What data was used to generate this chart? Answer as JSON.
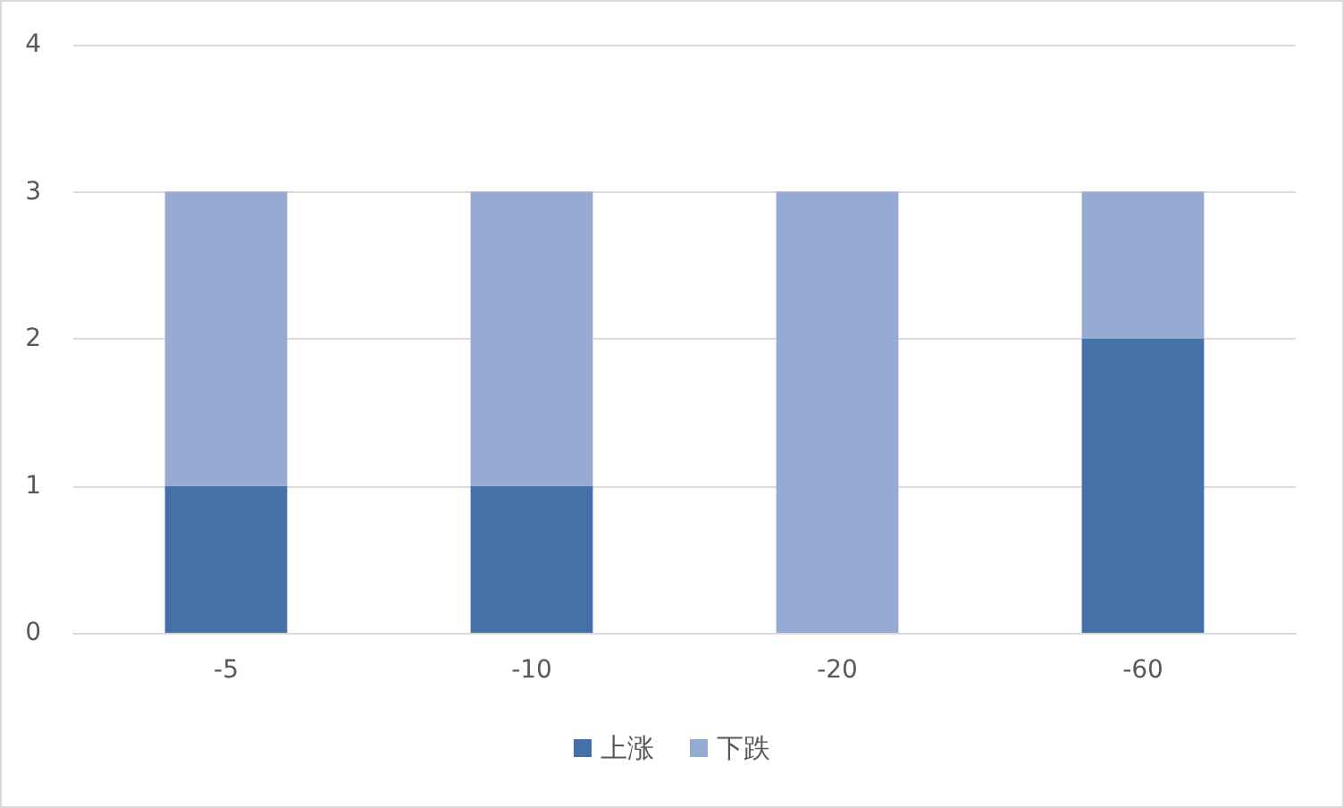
{
  "chart_data": {
    "type": "bar",
    "categories": [
      "-5",
      "-10",
      "-20",
      "-60"
    ],
    "series": [
      {
        "name": "上涨",
        "color": "#4472a8",
        "values": [
          1,
          1,
          0,
          2
        ]
      },
      {
        "name": "下跌",
        "color": "#95abd3",
        "values": [
          2,
          2,
          3,
          1
        ]
      }
    ],
    "stacked": true,
    "ylim": [
      0,
      4
    ],
    "yticks": [
      0,
      1,
      2,
      3,
      4
    ],
    "grid": "y",
    "legend": "bottom"
  }
}
